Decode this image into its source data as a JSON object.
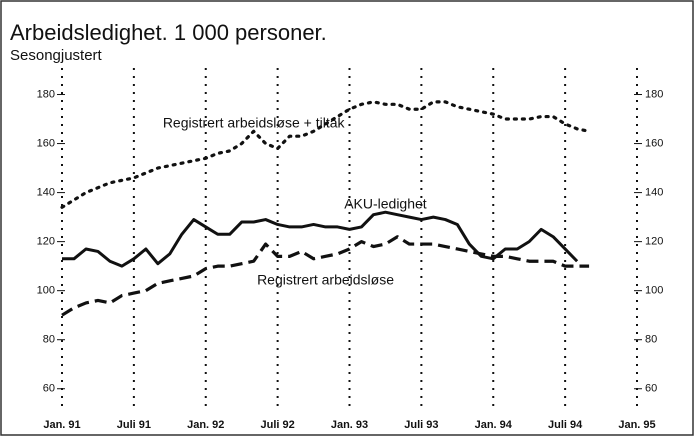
{
  "chart_data": {
    "type": "line",
    "title": "Arbeidsledighet. 1 000 personer.",
    "subtitle": "Sesongjustert",
    "x": [
      0,
      1,
      2,
      3,
      4,
      5,
      6,
      7,
      8,
      9,
      10,
      11,
      12,
      13,
      14,
      15,
      16,
      17,
      18,
      19,
      20,
      21,
      22,
      23,
      24,
      25,
      26,
      27,
      28,
      29,
      30,
      31,
      32,
      33,
      34,
      35,
      36,
      37,
      38,
      39,
      40,
      41,
      42,
      43,
      44
    ],
    "xlim": [
      0,
      48
    ],
    "xticks": [
      {
        "value": 0,
        "label": "Jan. 91"
      },
      {
        "value": 6,
        "label": "Juli 91"
      },
      {
        "value": 12,
        "label": "Jan. 92"
      },
      {
        "value": 18,
        "label": "Juli 92"
      },
      {
        "value": 24,
        "label": "Jan. 93"
      },
      {
        "value": 30,
        "label": "Juli 93"
      },
      {
        "value": 36,
        "label": "Jan. 94"
      },
      {
        "value": 42,
        "label": "Juli 94"
      },
      {
        "value": 48,
        "label": "Jan. 95"
      }
    ],
    "ylim": [
      55,
      190
    ],
    "yticks": [
      60,
      80,
      100,
      120,
      140,
      160,
      180
    ],
    "grid": "x",
    "series": [
      {
        "name": "Registrert arbeidsløse + tiltak",
        "color": "#111",
        "style": "dotted",
        "values": [
          134,
          137,
          140,
          142,
          144,
          145,
          146,
          148,
          150,
          151,
          152,
          153,
          154,
          156,
          157,
          160,
          165,
          160,
          158,
          163,
          163,
          165,
          168,
          171,
          174,
          176,
          177,
          176,
          176,
          174,
          174,
          177,
          177,
          175,
          174,
          173,
          172,
          170,
          170,
          170,
          171,
          171,
          168,
          166,
          165
        ]
      },
      {
        "name": "AKU-ledighet",
        "color": "#111",
        "style": "solid",
        "values": [
          113,
          113,
          117,
          116,
          112,
          110,
          113,
          117,
          111,
          115,
          123,
          129,
          126,
          123,
          123,
          128,
          128,
          129,
          127,
          126,
          126,
          127,
          126,
          126,
          125,
          126,
          131,
          132,
          131,
          130,
          129,
          130,
          129,
          127,
          119,
          114,
          113,
          117,
          117,
          120,
          125,
          122,
          117,
          112,
          null
        ]
      },
      {
        "name": "Registrert arbeidsløse",
        "color": "#111",
        "style": "dashed",
        "values": [
          90,
          93,
          95,
          96,
          95,
          98,
          99,
          100,
          103,
          104,
          105,
          106,
          109,
          110,
          110,
          111,
          112,
          119,
          114,
          114,
          116,
          113,
          114,
          115,
          117,
          120,
          118,
          119,
          122,
          119,
          119,
          119,
          118,
          117,
          116,
          115,
          114,
          114,
          113,
          112,
          112,
          112,
          110,
          110,
          110
        ]
      }
    ],
    "annotations": [
      {
        "text": "Registrert arbeidsløse + tiltak",
        "x": 16,
        "y": 168
      },
      {
        "text": "AKU-ledighet",
        "x": 27,
        "y": 135
      },
      {
        "text": "Registrert arbeidsløse",
        "x": 22,
        "y": 104
      }
    ]
  }
}
